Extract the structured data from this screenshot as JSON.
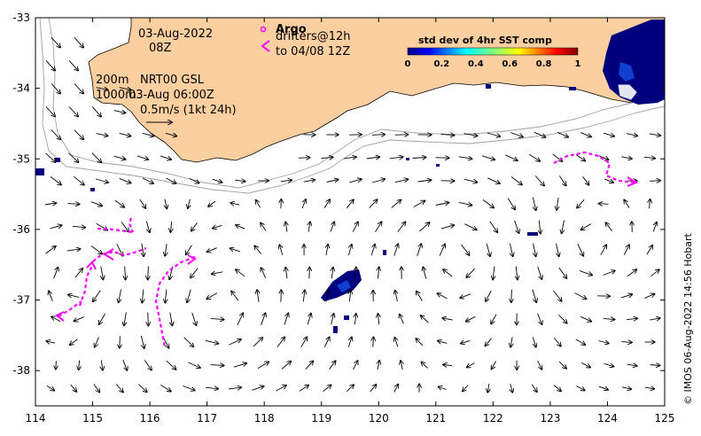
{
  "map": {
    "lon_range": [
      114,
      125
    ],
    "lat_range": [
      -38.5,
      -33
    ],
    "x_ticks": [
      "114",
      "115",
      "116",
      "117",
      "118",
      "119",
      "120",
      "121",
      "122",
      "123",
      "124",
      "125"
    ],
    "y_ticks": [
      "-33",
      "-34",
      "-35",
      "-36",
      "-37",
      "-38"
    ],
    "colors": {
      "land": "#fbcfa0",
      "ocean": "#ffffff",
      "argo": "#ff00ff",
      "sst_low": "#00007f"
    }
  },
  "annotations": {
    "date": "03-Aug-2022",
    "time": "08Z",
    "contour_200m": "200m",
    "contour_1000m": "1000m",
    "product": "NRT00 GSL",
    "analysis_time": "03-Aug 06:00Z",
    "velocity_scale": "0.5m/s (1kt 24h)"
  },
  "legend": {
    "argo_label": "Argo",
    "drifters_label": "drifters@12h",
    "drifters_to": "to 04/08 12Z"
  },
  "colorbar": {
    "title": "std dev of 4hr SST comp",
    "ticks": [
      "0",
      "0.2",
      "0.4",
      "0.6",
      "0.8",
      "1"
    ]
  },
  "credit": "© IMOS 06-Aug-2022 14:56 Hobart"
}
